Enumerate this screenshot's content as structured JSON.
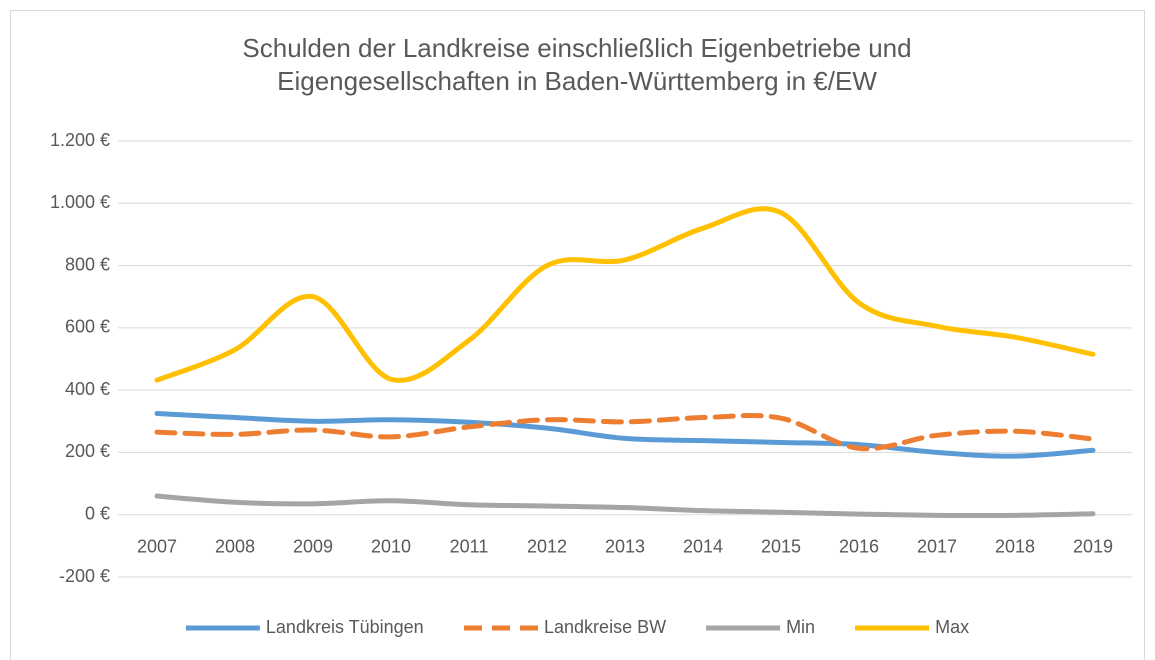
{
  "chart_data": {
    "type": "line",
    "title": [
      "Schulden der Landkreise einschließlich Eigenbetriebe und",
      "Eigengesellschaften in Baden-Württemberg in €/EW"
    ],
    "categories": [
      "2007",
      "2008",
      "2009",
      "2010",
      "2011",
      "2012",
      "2013",
      "2014",
      "2015",
      "2016",
      "2017",
      "2018",
      "2019"
    ],
    "series": [
      {
        "name": "Landkreis Tübingen",
        "color": "#5b9bd5",
        "dashed": false,
        "values": [
          325,
          312,
          300,
          305,
          297,
          278,
          245,
          238,
          232,
          225,
          200,
          188,
          207
        ]
      },
      {
        "name": "Landkreise BW",
        "color": "#ed7d31",
        "dashed": true,
        "values": [
          265,
          258,
          272,
          250,
          282,
          305,
          298,
          312,
          310,
          213,
          255,
          268,
          243
        ]
      },
      {
        "name": "Min",
        "color": "#a5a5a5",
        "dashed": false,
        "values": [
          60,
          40,
          35,
          45,
          32,
          28,
          23,
          13,
          8,
          2,
          -2,
          -2,
          3
        ]
      },
      {
        "name": "Max",
        "color": "#ffc000",
        "dashed": false,
        "values": [
          432,
          530,
          700,
          435,
          560,
          800,
          818,
          920,
          970,
          680,
          605,
          570,
          515
        ]
      }
    ],
    "ylim": [
      -200,
      1200
    ],
    "yticks": [
      {
        "value": -200,
        "label": "-200 €"
      },
      {
        "value": 0,
        "label": "0 €"
      },
      {
        "value": 200,
        "label": "200 €"
      },
      {
        "value": 400,
        "label": "400 €"
      },
      {
        "value": 600,
        "label": "600 €"
      },
      {
        "value": 800,
        "label": "800 €"
      },
      {
        "value": 1000,
        "label": "1.000 €"
      },
      {
        "value": 1200,
        "label": "1.200 €"
      }
    ],
    "grid": true,
    "smooth": true,
    "legend": "bottom"
  }
}
